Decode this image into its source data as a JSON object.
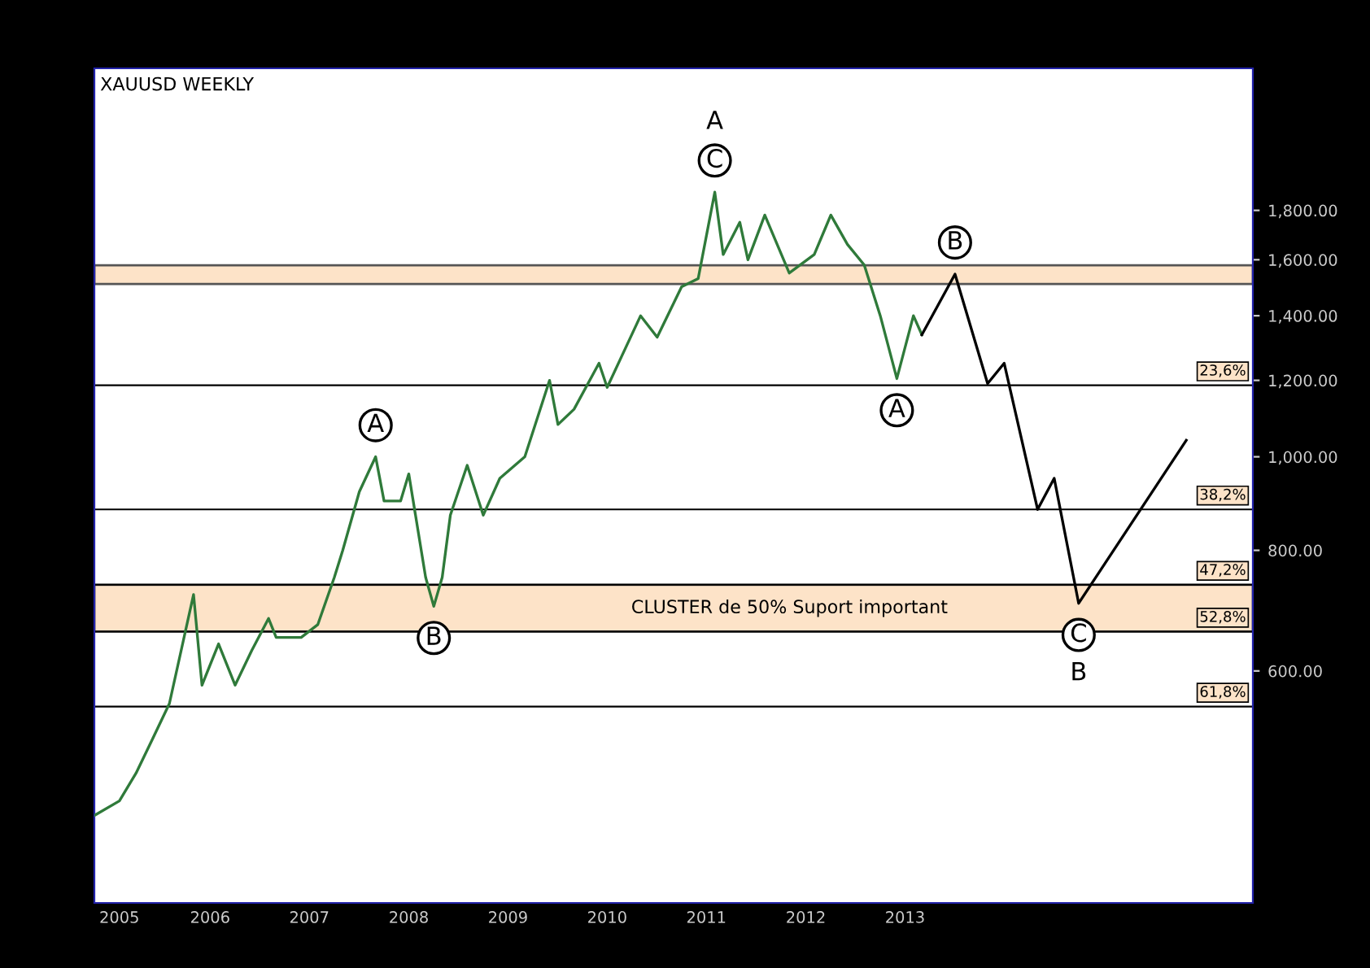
{
  "chart_data": {
    "type": "line",
    "title": "XAUUSD WEEKLY",
    "series": [
      {
        "color": "#2f7a3a",
        "x": [
          "2005-05",
          "2005-08",
          "2005-10",
          "2005-12",
          "2006-02",
          "2006-05",
          "2006-06",
          "2006-08",
          "2006-10",
          "2006-12",
          "2007-02",
          "2007-03",
          "2007-06",
          "2007-08",
          "2007-10",
          "2007-11",
          "2008-01",
          "2008-03",
          "2008-04",
          "2008-06",
          "2008-07",
          "2008-09",
          "2008-10",
          "2008-11",
          "2008-12",
          "2009-02",
          "2009-04",
          "2009-06",
          "2009-09",
          "2009-12",
          "2010-01",
          "2010-03",
          "2010-06",
          "2010-07",
          "2010-11",
          "2011-01",
          "2011-04",
          "2011-06",
          "2011-08",
          "2011-09",
          "2011-11",
          "2011-12",
          "2012-02",
          "2012-05",
          "2012-08",
          "2012-10",
          "2012-12",
          "2013-02",
          "2013-04",
          "2013-06",
          "2013-08",
          "2013-09"
        ],
        "values": [
          425,
          440,
          470,
          510,
          555,
          720,
          580,
          640,
          580,
          630,
          680,
          650,
          650,
          670,
          750,
          800,
          920,
          1000,
          900,
          900,
          960,
          750,
          700,
          750,
          870,
          980,
          870,
          950,
          1000,
          1200,
          1080,
          1120,
          1250,
          1180,
          1400,
          1330,
          1500,
          1530,
          1880,
          1620,
          1750,
          1600,
          1780,
          1550,
          1620,
          1780,
          1660,
          1580,
          1400,
          1205,
          1400,
          1338
        ]
      },
      {
        "color": "#000000",
        "x": [
          "2013-09",
          "2014-01",
          "2014-05",
          "2014-07",
          "2014-11",
          "2015-01",
          "2015-04",
          "2016-05"
        ],
        "values": [
          1338,
          1546,
          1191,
          1250,
          882,
          950,
          705,
          1040
        ]
      }
    ],
    "xlim": [
      "2005-05",
      "2017-01"
    ],
    "xticks": [
      {
        "value": "2005-08",
        "label": "2005"
      },
      {
        "value": "2006-07",
        "label": "2006"
      },
      {
        "value": "2007-07",
        "label": "2007"
      },
      {
        "value": "2008-07",
        "label": "2008"
      },
      {
        "value": "2009-07",
        "label": "2009"
      },
      {
        "value": "2010-07",
        "label": "2010"
      },
      {
        "value": "2011-07",
        "label": "2011"
      },
      {
        "value": "2012-07",
        "label": "2012"
      },
      {
        "value": "2013-07",
        "label": "2013"
      }
    ],
    "log": true,
    "ylim": [
      345,
      2526
    ],
    "yticks": [
      {
        "value": 600,
        "label": "600.00"
      },
      {
        "value": 800,
        "label": "800.00"
      },
      {
        "value": 1000,
        "label": "1,000.00"
      },
      {
        "value": 1200,
        "label": "1,200.00"
      },
      {
        "value": 1400,
        "label": "1,400.00"
      },
      {
        "value": 1600,
        "label": "1,600.00"
      },
      {
        "value": 1800,
        "label": "1,800.00"
      }
    ],
    "ref_lines": [
      {
        "axis": "y",
        "value": 1186,
        "color": "#000000"
      },
      {
        "axis": "y",
        "value": 882,
        "color": "#000000"
      },
      {
        "axis": "y",
        "value": 737,
        "color": "#000000"
      },
      {
        "axis": "y",
        "value": 659,
        "color": "#000000"
      },
      {
        "axis": "y",
        "value": 551,
        "color": "#000000"
      }
    ],
    "bands": [
      {
        "axis": "y",
        "from": 659,
        "to": 737,
        "label": "CLUSTER de 50% Suport important",
        "color": "#fde3c8"
      },
      {
        "axis": "y",
        "from": 1510,
        "to": 1579,
        "label": null,
        "color": "#fde3c8"
      }
    ],
    "annotations": [
      {
        "text": "C",
        "x": "2011-08",
        "y": 1880
      },
      {
        "text": "A",
        "x": "2011-08",
        "y": 1880
      },
      {
        "text": "A",
        "x": "2008-03",
        "y": 1000
      },
      {
        "text": "B",
        "x": "2008-10",
        "y": 700
      },
      {
        "text": "B",
        "x": "2014-01",
        "y": 1546
      },
      {
        "text": "A",
        "x": "2013-06",
        "y": 1205
      },
      {
        "text": "C",
        "x": "2015-04",
        "y": 705
      },
      {
        "text": "B",
        "x": "2015-04",
        "y": 705
      },
      {
        "text": "23,6%",
        "x": "2017-01",
        "y": 1186
      },
      {
        "text": "38,2%",
        "x": "2017-01",
        "y": 882
      },
      {
        "text": "47,2%",
        "x": "2017-01",
        "y": 737
      },
      {
        "text": "52,8%",
        "x": "2017-01",
        "y": 659
      },
      {
        "text": "61,8%",
        "x": "2017-01",
        "y": 551
      }
    ],
    "grid": false,
    "legend": false
  }
}
